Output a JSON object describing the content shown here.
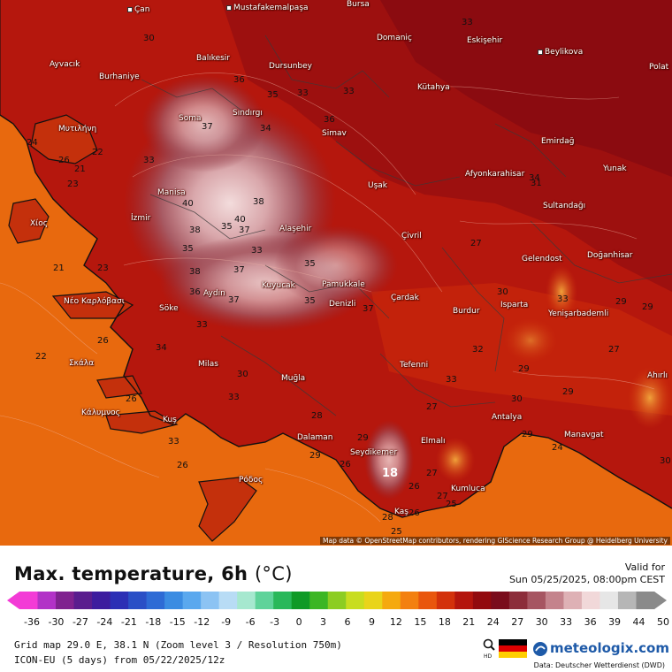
{
  "title": "Max. temperature, 6h",
  "unit": "(°C)",
  "valid_label": "Valid for",
  "valid_time": "Sun 05/25/2025, 08:00pm CEST",
  "scale_ticks": [
    "-36",
    "-30",
    "-27",
    "-24",
    "-21",
    "-18",
    "-15",
    "-12",
    "-9",
    "-6",
    "-3",
    "0",
    "3",
    "6",
    "9",
    "12",
    "15",
    "18",
    "21",
    "24",
    "27",
    "30",
    "33",
    "36",
    "39",
    "44",
    "50"
  ],
  "scale_colors": [
    "#f33bd6",
    "#b232c7",
    "#80228f",
    "#5a1d8e",
    "#3d1c9e",
    "#2c2fb5",
    "#2a4fc6",
    "#2e6bd5",
    "#3b8ce2",
    "#5aa8ee",
    "#8cc3f3",
    "#b8dcf5",
    "#a6e8cf",
    "#5fd39a",
    "#29b85a",
    "#0f9a26",
    "#3cb624",
    "#8ccd22",
    "#c8dd1f",
    "#e9d41a",
    "#f5a90f",
    "#f38010",
    "#e9560d",
    "#d3310b",
    "#b4150d",
    "#920a0e",
    "#7a0c1c",
    "#8c2d3a",
    "#a65561",
    "#c4838c",
    "#deb1b5",
    "#f1d8d9",
    "#e6e6e6",
    "#b6b6b6",
    "#8a8a8a"
  ],
  "grid_info": "Grid map 29.0 E, 38.1 N (Zoom level 3 / Resolution 750m)",
  "model_info": "ICON-EU (5 days) from 05/22/2025/12z",
  "brand": "meteologix.com",
  "brand_hd": "HD",
  "data_source": "Data: Deutscher Wetterdienst (DWD)",
  "attribution": "Map data © OpenStreetMap contributors, rendering GIScience Research Group @ Heidelberg University",
  "places": [
    "Çan",
    "Mustafakemalpaşa",
    "Bursa",
    "Ayvacık",
    "Burhaniye",
    "Balıkesir",
    "Dursunbey",
    "Domaniç",
    "Eskişehir",
    "Beylikova",
    "Polat",
    "Kütahya",
    "Soma",
    "Sındırgı",
    "Simav",
    "Μυτιλήνη",
    "Emirdağ",
    "Yunak",
    "Afyonkarahisar",
    "Manisa",
    "Uşak",
    "Sultandağı",
    "İzmir",
    "Alaşehir",
    "Χίος",
    "Çivril",
    "Gelendost",
    "Doğanhisar",
    "Kuyucak",
    "Pamukkale",
    "Aydın",
    "Denizli",
    "Çardak",
    "Νέο Καρλόβασι",
    "Söke",
    "Burdur",
    "Isparta",
    "Yenişarbademli",
    "Milas",
    "Tefenni",
    "Ahırlı",
    "Σκάλα",
    "Muğla",
    "Κάλυμνος",
    "Kuş",
    "Dalaman",
    "Elmalı",
    "Antalya",
    "Manavgat",
    "Seydikemer",
    "Kumluca",
    "Ρόδος",
    "Kaş"
  ],
  "temp_labels": [
    "33",
    "36",
    "30",
    "24",
    "22",
    "26",
    "21",
    "23",
    "33",
    "37",
    "33",
    "35",
    "33",
    "36",
    "34",
    "40",
    "38",
    "40",
    "35",
    "37",
    "38",
    "33",
    "21",
    "23",
    "35",
    "38",
    "37",
    "36",
    "37",
    "33",
    "35",
    "37",
    "34",
    "30",
    "35",
    "27",
    "30",
    "33",
    "34",
    "29",
    "27",
    "26",
    "33",
    "27",
    "26",
    "33",
    "28",
    "29",
    "26",
    "18",
    "29",
    "26",
    "24",
    "29",
    "30",
    "27",
    "25",
    "29",
    "31",
    "29",
    "30",
    "27",
    "28",
    "25",
    "22",
    "26",
    "26",
    "32",
    "33",
    "29"
  ]
}
